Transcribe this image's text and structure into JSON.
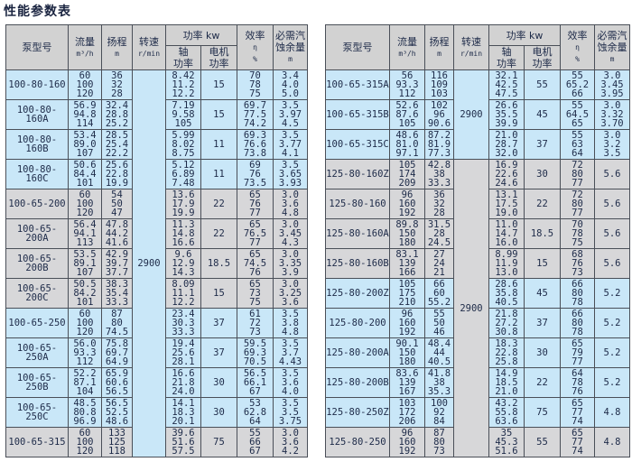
{
  "title": "性能参数表",
  "colors": {
    "blue": "#c9e7f8",
    "gray": "#d7d7d9",
    "header": "#d2d2d2"
  },
  "header": {
    "model": "泵型号",
    "flow": "流量",
    "flow_unit": "m³/h",
    "head": "扬程",
    "head_unit": "m",
    "speed": "转速",
    "speed_unit": "r/min",
    "power": "功率 kw",
    "shaft": "轴\n功率",
    "motor": "电机\n功率",
    "eff": "效率",
    "eff_symbol": "η",
    "eff_unit": "%",
    "npsh": "必需汽\n蚀余量",
    "npsh_unit": "m"
  },
  "tables": [
    {
      "speed_groups": [
        {
          "value": "2900",
          "rows": 13,
          "color": "blue"
        }
      ],
      "rows": [
        {
          "model": "100-80-160",
          "color": "blue",
          "flow": [
            "60",
            "100",
            "120"
          ],
          "head": [
            "36",
            "32",
            "28"
          ],
          "shaft": [
            "8.42",
            "11.2",
            "12.2"
          ],
          "motor": "15",
          "eff": [
            "70",
            "78",
            "75"
          ],
          "npsh": [
            "3.4",
            "4.0",
            "5.0"
          ]
        },
        {
          "model": "100-80-160A",
          "color": "blue",
          "flow": [
            "56.9",
            "94.8",
            "114"
          ],
          "head": [
            "32.4",
            "28.8",
            "25.2"
          ],
          "shaft": [
            "7.19",
            "9.58",
            "105"
          ],
          "motor": "15",
          "eff": [
            "69.7",
            "77.5",
            "74.2"
          ],
          "npsh": [
            "3.5",
            "3.97",
            "4.5"
          ]
        },
        {
          "model": "100-80-160B",
          "color": "blue",
          "flow": [
            "53.4",
            "89.0",
            "107"
          ],
          "head": [
            "28.5",
            "25.4",
            "22.2"
          ],
          "shaft": [
            "5.99",
            "8.02",
            "8.75"
          ],
          "motor": "11",
          "eff": [
            "69.3",
            "76.6",
            "73.8"
          ],
          "npsh": [
            "3.5",
            "3.77",
            "4.1"
          ]
        },
        {
          "model": "100-80-160C",
          "color": "blue",
          "flow": [
            "50.6",
            "84.4",
            "101"
          ],
          "head": [
            "25.6",
            "22.8",
            "19.9"
          ],
          "shaft": [
            "5.12",
            "6.89",
            "7.48"
          ],
          "motor": "11",
          "eff": [
            "69",
            "76",
            "73.5"
          ],
          "npsh": [
            "3.5",
            "3.65",
            "3.93"
          ]
        },
        {
          "model": "100-65-200",
          "color": "gray",
          "flow": [
            "60",
            "100",
            "120"
          ],
          "head": [
            "54",
            "50",
            "47"
          ],
          "shaft": [
            "13.6",
            "17.9",
            "19.9"
          ],
          "motor": "22",
          "eff": [
            "65",
            "76",
            "77"
          ],
          "npsh": [
            "3.0",
            "3.6",
            "4.8"
          ]
        },
        {
          "model": "100-65-200A",
          "color": "gray",
          "flow": [
            "56.4",
            "94.1",
            "113"
          ],
          "head": [
            "47.8",
            "44.2",
            "41.6"
          ],
          "shaft": [
            "11.3",
            "14.8",
            "16.6"
          ],
          "motor": "22",
          "eff": [
            "65",
            "76.5",
            "77"
          ],
          "npsh": [
            "3.0",
            "3.45",
            "4.3"
          ]
        },
        {
          "model": "100-65-200B",
          "color": "gray",
          "flow": [
            "53.5",
            "89.1",
            "107"
          ],
          "head": [
            "42.9",
            "39.7",
            "37.7"
          ],
          "shaft": [
            "9.6",
            "12.9",
            "14.3"
          ],
          "motor": "18.5",
          "eff": [
            "65",
            "74.5",
            "76"
          ],
          "npsh": [
            "3.0",
            "3.35",
            "3.9"
          ]
        },
        {
          "model": "100-65-200C",
          "color": "gray",
          "flow": [
            "50.5",
            "84.2",
            "101"
          ],
          "head": [
            "38.3",
            "35.4",
            "33.3"
          ],
          "shaft": [
            "8.09",
            "11.1",
            "12.2"
          ],
          "motor": "15",
          "eff": [
            "65",
            "73",
            "75"
          ],
          "npsh": [
            "3.0",
            "3.25",
            "3.6"
          ]
        },
        {
          "model": "100-65-250",
          "color": "blue",
          "flow": [
            "60",
            "100",
            "120"
          ],
          "head": [
            "87",
            "80",
            "74.5"
          ],
          "shaft": [
            "23.4",
            "30.3",
            "33.3"
          ],
          "motor": "37",
          "eff": [
            "61",
            "72",
            "73"
          ],
          "npsh": [
            "3.5",
            "3.8",
            "4.8"
          ]
        },
        {
          "model": "100-65-250A",
          "color": "blue",
          "flow": [
            "56.0",
            "93.3",
            "112"
          ],
          "head": [
            "75.8",
            "69.7",
            "64.9"
          ],
          "shaft": [
            "19.4",
            "25.6",
            "28.1"
          ],
          "motor": "37",
          "eff": [
            "59.5",
            "69.3",
            "70.5"
          ],
          "npsh": [
            "3.5",
            "3.7",
            "4.43"
          ]
        },
        {
          "model": "100-65-250B",
          "color": "blue",
          "flow": [
            "52.2",
            "87.1",
            "104"
          ],
          "head": [
            "65.9",
            "60.6",
            "56.5"
          ],
          "shaft": [
            "16.6",
            "21.8",
            "24.0"
          ],
          "motor": "30",
          "eff": [
            "56.5",
            "66.1",
            "67"
          ],
          "npsh": [
            "3.5",
            "3.6",
            "4.0"
          ]
        },
        {
          "model": "100-65-250C",
          "color": "blue",
          "flow": [
            "48.5",
            "80.8",
            "96.9"
          ],
          "head": [
            "56.5",
            "52.5",
            "48.6"
          ],
          "shaft": [
            "14.1",
            "18.3",
            "20.1"
          ],
          "motor": "30",
          "eff": [
            "53",
            "62.8",
            "64"
          ],
          "npsh": [
            "3.5",
            "3.5",
            "3.75"
          ]
        },
        {
          "model": "100-65-315",
          "color": "gray",
          "flow": [
            "60",
            "100",
            "120"
          ],
          "head": [
            "133",
            "125",
            "118"
          ],
          "shaft": [
            "39.6",
            "51.6",
            "57.5"
          ],
          "motor": "75",
          "eff": [
            "55",
            "66",
            "67"
          ],
          "npsh": [
            "3.0",
            "3.6",
            "4.2"
          ]
        }
      ]
    },
    {
      "speed_groups": [
        {
          "value": "2900",
          "rows": 3,
          "color": "blue"
        },
        {
          "value": "2900",
          "rows": 10,
          "color": "gray"
        }
      ],
      "rows": [
        {
          "model": "100-65-315A",
          "color": "blue",
          "flow": [
            "56",
            "93.3",
            "112"
          ],
          "head": [
            "116",
            "109",
            "103"
          ],
          "shaft": [
            "32.1",
            "42.5",
            "47.5"
          ],
          "motor": "55",
          "eff": [
            "55",
            "65.2",
            "66"
          ],
          "npsh": [
            "3.0",
            "3.45",
            "3.95"
          ]
        },
        {
          "model": "100-65-315B",
          "color": "blue",
          "flow": [
            "52.6",
            "87.6",
            "105"
          ],
          "head": [
            "102",
            "96",
            "90.6"
          ],
          "shaft": [
            "26.6",
            "35.5",
            "39.9"
          ],
          "motor": "45",
          "eff": [
            "55",
            "64.5",
            "65"
          ],
          "npsh": [
            "3.0",
            "3.32",
            "3.70"
          ]
        },
        {
          "model": "100-65-315C",
          "color": "blue",
          "flow": [
            "48.6",
            "81.0",
            "97.1"
          ],
          "head": [
            "87.2",
            "81.9",
            "77.3"
          ],
          "shaft": [
            "21.0",
            "28.7",
            "32.0"
          ],
          "motor": "37",
          "eff": [
            "55",
            "63",
            "64"
          ],
          "npsh": [
            "3.0",
            "3.2",
            "3.5"
          ]
        },
        {
          "model": "125-80-160Z",
          "color": "gray",
          "flow": [
            "105",
            "174",
            "209"
          ],
          "head": [
            "42.8",
            "38",
            "33.3"
          ],
          "shaft": [
            "16.9",
            "22.6",
            "24.6"
          ],
          "motor": "30",
          "eff": [
            "72",
            "80",
            "77"
          ],
          "npsh": "5.6"
        },
        {
          "model": "125-80-160",
          "color": "gray",
          "flow": [
            "96",
            "160",
            "192"
          ],
          "head": [
            "36",
            "32",
            "28"
          ],
          "shaft": [
            "13.1",
            "17.5",
            "19.0"
          ],
          "motor": "22",
          "eff": [
            "72",
            "80",
            "77"
          ],
          "npsh": "5.6"
        },
        {
          "model": "125-80-160A",
          "color": "gray",
          "flow": [
            "89.8",
            "150",
            "180"
          ],
          "head": [
            "31.5",
            "28",
            "24.5"
          ],
          "shaft": [
            "11.0",
            "14.7",
            "16.0"
          ],
          "motor": "18.5",
          "eff": [
            "70",
            "78",
            "75"
          ],
          "npsh": "5.6"
        },
        {
          "model": "125-80-160B",
          "color": "gray",
          "flow": [
            "83.1",
            "139",
            "166"
          ],
          "head": [
            "27",
            "24",
            "21"
          ],
          "shaft": [
            "8.99",
            "11.9",
            "13.0"
          ],
          "motor": "15",
          "eff": [
            "68",
            "76",
            "73"
          ],
          "npsh": "5.6"
        },
        {
          "model": "125-80-200Z",
          "color": "blue",
          "flow": [
            "105",
            "175",
            "210"
          ],
          "head": [
            "66",
            "60",
            "55.2"
          ],
          "shaft": [
            "28.6",
            "35.8",
            "40.5"
          ],
          "motor": "45",
          "eff": [
            "66",
            "80",
            "78"
          ],
          "npsh": "5.2"
        },
        {
          "model": "125-80-200",
          "color": "blue",
          "flow": [
            "96",
            "160",
            "192"
          ],
          "head": [
            "55",
            "50",
            "46"
          ],
          "shaft": [
            "21.8",
            "27.2",
            "30.8"
          ],
          "motor": "37",
          "eff": [
            "66",
            "80",
            "78"
          ],
          "npsh": "5.2"
        },
        {
          "model": "125-80-200A",
          "color": "blue",
          "flow": [
            "90.1",
            "150",
            "180"
          ],
          "head": [
            "48.4",
            "44",
            "40.5"
          ],
          "shaft": [
            "18.3",
            "22.8",
            "25.8"
          ],
          "motor": "30",
          "eff": [
            "65",
            "79",
            "77"
          ],
          "npsh": "5.2"
        },
        {
          "model": "125-80-200B",
          "color": "blue",
          "flow": [
            "83.6",
            "139",
            "167"
          ],
          "head": [
            "41.8",
            "38",
            "35.3"
          ],
          "shaft": [
            "14.9",
            "18.5",
            "21.0"
          ],
          "motor": "22",
          "eff": [
            "64",
            "78",
            "76"
          ],
          "npsh": "5.2"
        },
        {
          "model": "125-80-250Z",
          "color": "blue",
          "flow": [
            "103",
            "172",
            "206"
          ],
          "head": [
            "100",
            "92",
            "84"
          ],
          "shaft": [
            "43.2",
            "55.8",
            "63.6"
          ],
          "motor": "75",
          "eff": [
            "65",
            "77",
            "74"
          ],
          "npsh": "4.8"
        },
        {
          "model": "125-80-250",
          "color": "gray",
          "flow": [
            "96",
            "160",
            "192"
          ],
          "head": [
            "87",
            "80",
            "73"
          ],
          "shaft": [
            "35",
            "45.3",
            "51.6"
          ],
          "motor": "55",
          "eff": [
            "65",
            "77",
            "74"
          ],
          "npsh": "4.8"
        }
      ]
    }
  ]
}
